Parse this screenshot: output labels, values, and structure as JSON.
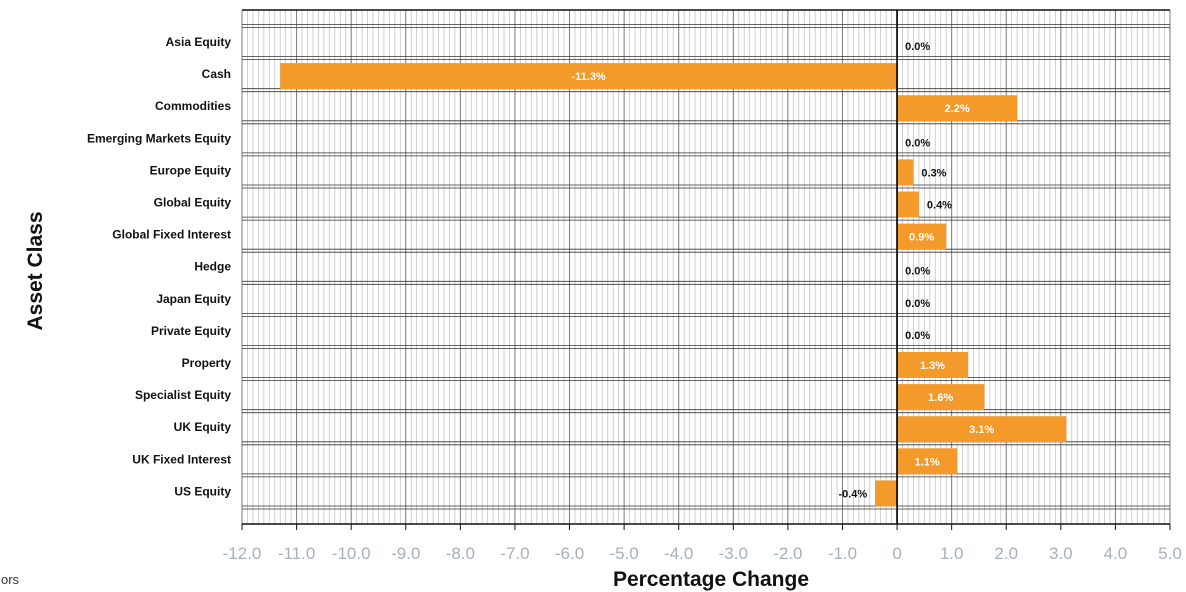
{
  "chart_data": {
    "type": "bar",
    "orientation": "horizontal",
    "ylabel": "Asset Class",
    "xlabel": "Percentage Change",
    "xlim": [
      -12.0,
      5.0
    ],
    "xticks": [
      "-12.0",
      "-11.0",
      "-10.0",
      "-9.0",
      "-8.0",
      "-7.0",
      "-6.0",
      "-5.0",
      "-4.0",
      "-3.0",
      "-2.0",
      "-1.0",
      "0",
      "1.0",
      "2.0",
      "3.0",
      "4.0",
      "5.0"
    ],
    "grid": true,
    "categories": [
      "Asia Equity",
      "Cash",
      "Commodities",
      "Emerging Markets Equity",
      "Europe Equity",
      "Global Equity",
      "Global Fixed Interest",
      "Hedge",
      "Japan Equity",
      "Private Equity",
      "Property",
      "Specialist Equity",
      "UK Equity",
      "UK Fixed Interest",
      "US Equity"
    ],
    "values": [
      0.0,
      -11.3,
      2.2,
      0.0,
      0.3,
      0.4,
      0.9,
      0.0,
      0.0,
      0.0,
      1.3,
      1.6,
      3.1,
      1.1,
      -0.4
    ],
    "value_labels": [
      "0.0%",
      "-11.3%",
      "2.2%",
      "0.0%",
      "0.3%",
      "0.4%",
      "0.9%",
      "0.0%",
      "0.0%",
      "0.0%",
      "1.3%",
      "1.6%",
      "3.1%",
      "1.1%",
      "-0.4%"
    ],
    "bar_color": "#f39a2b"
  },
  "footnote": "ors"
}
